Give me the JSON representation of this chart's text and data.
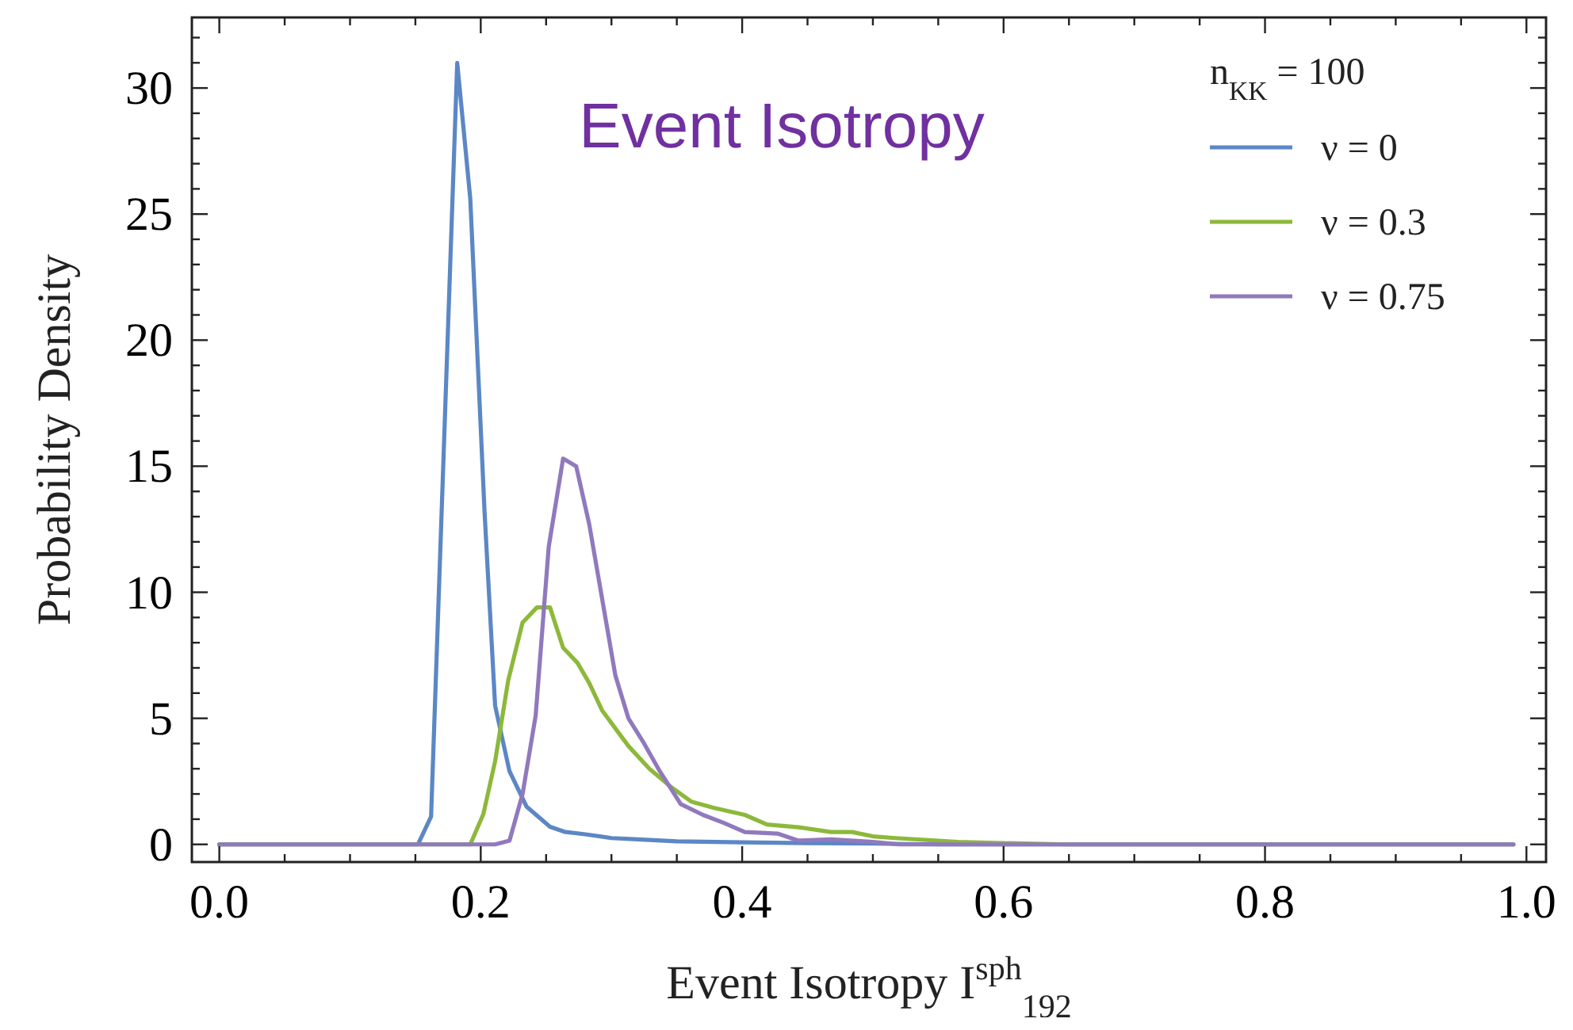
{
  "chart_data": {
    "type": "line",
    "title": "Event Isotropy",
    "xlabel": "Event Isotropy I$^{sph}$$_{192}$",
    "ylabel": "Probability Density",
    "legend_title": "n$_{KK}$ = 100",
    "legend": "top right",
    "grid": false,
    "marker": "none",
    "line_style": "solid",
    "xlim": [
      -0.021,
      1.015
    ],
    "ylim": [
      -0.7,
      32.8
    ],
    "xticks": [
      {
        "value": 0,
        "label": "0.0"
      },
      {
        "value": 0.05,
        "label": null
      },
      {
        "value": 0.1,
        "label": null
      },
      {
        "value": 0.15,
        "label": null
      },
      0.2,
      {
        "value": 0.25,
        "label": null
      },
      {
        "value": 0.3,
        "label": null
      },
      {
        "value": 0.35,
        "label": null
      },
      0.4,
      {
        "value": 0.45,
        "label": null
      },
      {
        "value": 0.5,
        "label": null
      },
      {
        "value": 0.55,
        "label": null
      },
      0.6,
      {
        "value": 0.65,
        "label": null
      },
      {
        "value": 0.7,
        "label": null
      },
      {
        "value": 0.75,
        "label": null
      },
      0.8,
      {
        "value": 0.85,
        "label": null
      },
      {
        "value": 0.9,
        "label": null
      },
      {
        "value": 0.95,
        "label": null
      },
      {
        "value": 1,
        "label": "1.0"
      }
    ],
    "yticks": [
      0,
      {
        "value": 1,
        "label": null
      },
      {
        "value": 2,
        "label": null
      },
      {
        "value": 3,
        "label": null
      },
      {
        "value": 4,
        "label": null
      },
      5,
      {
        "value": 6,
        "label": null
      },
      {
        "value": 7,
        "label": null
      },
      {
        "value": 8,
        "label": null
      },
      {
        "value": 9,
        "label": null
      },
      10,
      {
        "value": 11,
        "label": null
      },
      {
        "value": 12,
        "label": null
      },
      {
        "value": 13,
        "label": null
      },
      {
        "value": 14,
        "label": null
      },
      15,
      {
        "value": 16,
        "label": null
      },
      {
        "value": 17,
        "label": null
      },
      {
        "value": 18,
        "label": null
      },
      {
        "value": 19,
        "label": null
      },
      20,
      {
        "value": 21,
        "label": null
      },
      {
        "value": 22,
        "label": null
      },
      {
        "value": 23,
        "label": null
      },
      {
        "value": 24,
        "label": null
      },
      25,
      {
        "value": 26,
        "label": null
      },
      {
        "value": 27,
        "label": null
      },
      {
        "value": 28,
        "label": null
      },
      {
        "value": 29,
        "label": null
      },
      30,
      {
        "value": 31,
        "label": null
      },
      {
        "value": 32,
        "label": null
      }
    ],
    "series": [
      {
        "name": "ν = 0",
        "color": "#5b87c5",
        "x": [
          0,
          0.152,
          0.162,
          0.182,
          0.192,
          0.203,
          0.211,
          0.222,
          0.235,
          0.253,
          0.264,
          0.28,
          0.3,
          0.32,
          0.35,
          0.4,
          0.45,
          0.5,
          0.55,
          0.99
        ],
        "values": [
          0,
          0,
          1.1,
          31,
          25.6,
          13.1,
          5.5,
          2.9,
          1.5,
          0.7,
          0.5,
          0.4,
          0.25,
          0.2,
          0.12,
          0.08,
          0.05,
          0.03,
          0,
          0
        ]
      },
      {
        "name": "ν = 0.3",
        "color": "#8db83a",
        "x": [
          0,
          0.192,
          0.202,
          0.211,
          0.221,
          0.232,
          0.243,
          0.253,
          0.263,
          0.274,
          0.283,
          0.293,
          0.303,
          0.313,
          0.329,
          0.345,
          0.361,
          0.378,
          0.402,
          0.419,
          0.443,
          0.468,
          0.484,
          0.5,
          0.517,
          0.565,
          0.6,
          0.65,
          0.99
        ],
        "values": [
          0,
          0,
          1.2,
          3.3,
          6.5,
          8.8,
          9.4,
          9.4,
          7.8,
          7.2,
          6.4,
          5.3,
          4.6,
          3.9,
          3,
          2.3,
          1.7,
          1.45,
          1.17,
          0.79,
          0.68,
          0.49,
          0.49,
          0.32,
          0.25,
          0.1,
          0.05,
          0,
          0
        ]
      },
      {
        "name": "ν = 0.75",
        "color": "#9079bd",
        "x": [
          0,
          0.211,
          0.222,
          0.232,
          0.242,
          0.252,
          0.263,
          0.273,
          0.283,
          0.292,
          0.303,
          0.313,
          0.325,
          0.337,
          0.353,
          0.37,
          0.386,
          0.402,
          0.427,
          0.443,
          0.468,
          0.5,
          0.52,
          0.99
        ],
        "values": [
          0,
          0,
          0.15,
          2,
          5.1,
          11.8,
          15.3,
          15,
          12.7,
          10,
          6.7,
          5,
          4,
          2.9,
          1.6,
          1.17,
          0.85,
          0.49,
          0.43,
          0.15,
          0.2,
          0.1,
          0,
          0
        ]
      }
    ]
  }
}
